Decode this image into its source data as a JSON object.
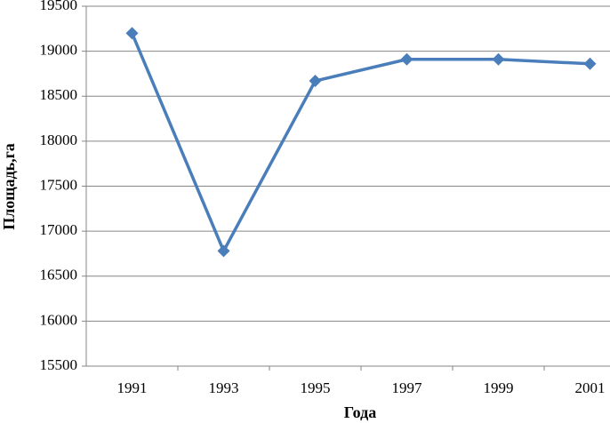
{
  "chart_data": {
    "type": "line",
    "x_label": "Года",
    "y_label": "Площадь,га",
    "categories": [
      "1991",
      "1993",
      "1995",
      "1997",
      "1999",
      "2001"
    ],
    "series": [
      {
        "name": "Площадь",
        "color": "#4a7ebb",
        "values": [
          19200,
          16780,
          18670,
          18910,
          18910,
          18860
        ]
      }
    ],
    "ylim": [
      15500,
      19500
    ],
    "yticks": [
      15500,
      16000,
      16500,
      17000,
      17500,
      18000,
      18500,
      19000,
      19500
    ],
    "grid": true
  }
}
